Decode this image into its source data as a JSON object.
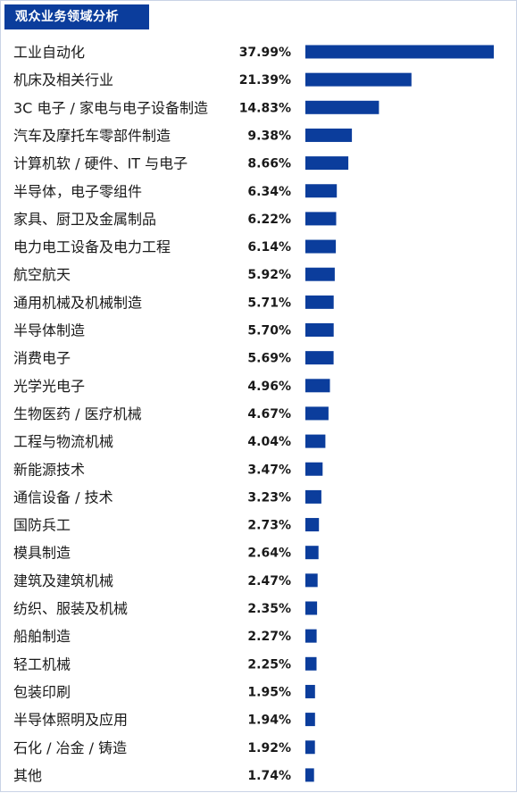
{
  "chart_data": {
    "type": "bar",
    "orientation": "horizontal",
    "title": "观众业务领域分析",
    "categories": [
      "工业自动化",
      "机床及相关行业",
      "3C 电子 / 家电与电子设备制造",
      "汽车及摩托车零部件制造",
      "计算机软 / 硬件、IT 与电子",
      "半导体，电子零组件",
      "家具、厨卫及金属制品",
      "电力电工设备及电力工程",
      "航空航天",
      "通用机械及机械制造",
      "半导体制造",
      "消费电子",
      "光学光电子",
      "生物医药 / 医疗机械",
      "工程与物流机械",
      "新能源技术",
      "通信设备 / 技术",
      "国防兵工",
      "模具制造",
      "建筑及建筑机械",
      "纺织、服装及机械",
      "船舶制造",
      "轻工机械",
      "包装印刷",
      "半导体照明及应用",
      "石化 / 冶金 / 铸造",
      "其他"
    ],
    "values": [
      37.99,
      21.39,
      14.83,
      9.38,
      8.66,
      6.34,
      6.22,
      6.14,
      5.92,
      5.71,
      5.7,
      5.69,
      4.96,
      4.67,
      4.04,
      3.47,
      3.23,
      2.73,
      2.64,
      2.47,
      2.35,
      2.27,
      2.25,
      1.95,
      1.94,
      1.92,
      1.74
    ],
    "value_labels": [
      "37.99%",
      "21.39%",
      "14.83%",
      "9.38%",
      "8.66%",
      "6.34%",
      "6.22%",
      "6.14%",
      "5.92%",
      "5.71%",
      "5.70%",
      "5.69%",
      "4.96%",
      "4.67%",
      "4.04%",
      "3.47%",
      "3.23%",
      "2.73%",
      "2.64%",
      "2.47%",
      "2.35%",
      "2.27%",
      "2.25%",
      "1.95%",
      "1.94%",
      "1.92%",
      "1.74%"
    ],
    "bar_color": "#0b3d9c",
    "header_color": "#0b3d9c",
    "grid": false
  }
}
